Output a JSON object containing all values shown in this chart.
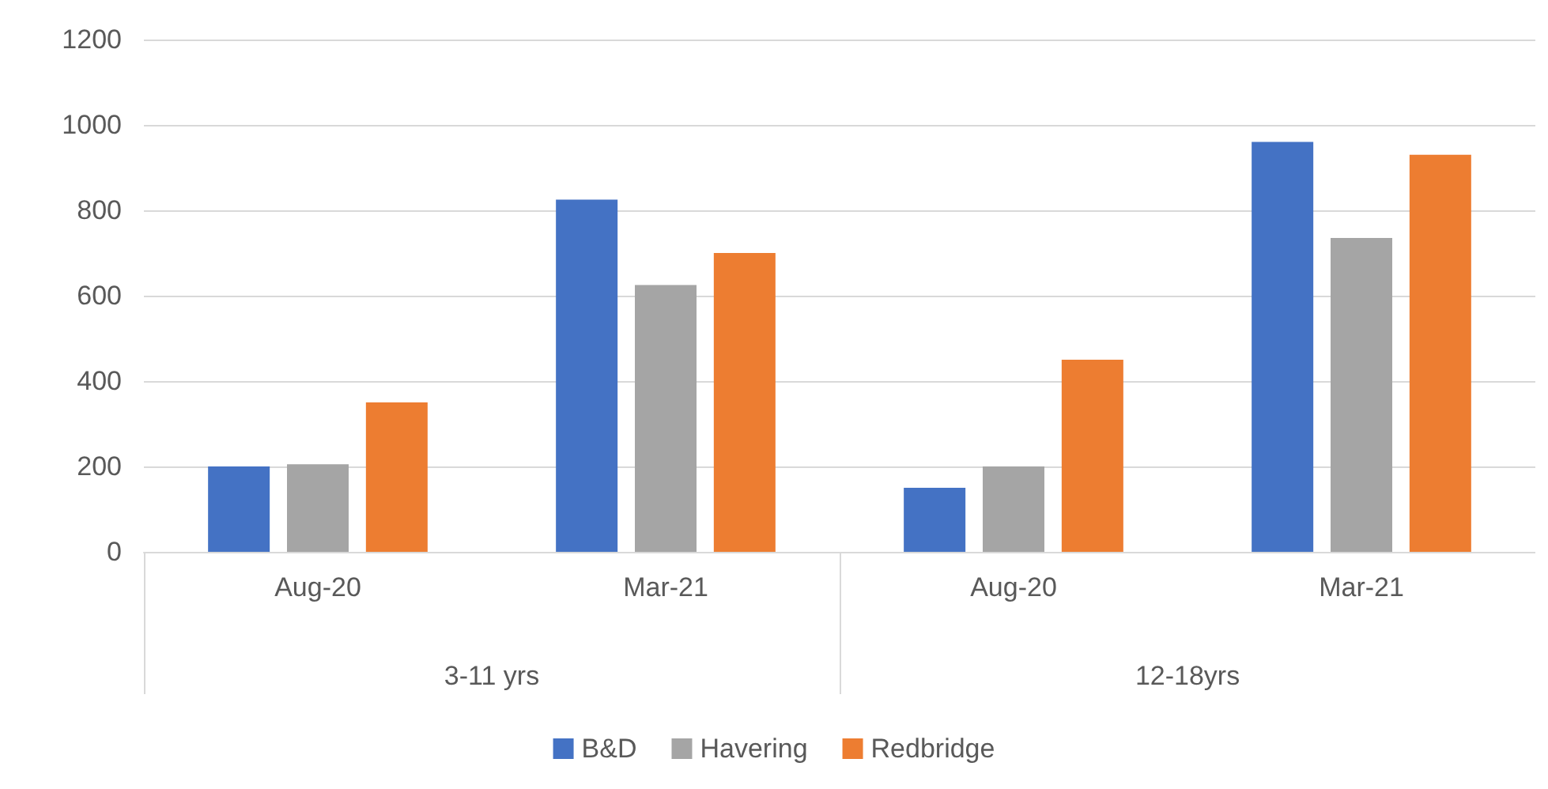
{
  "chart_data": {
    "type": "bar",
    "categories": [
      "Aug-20",
      "Mar-21",
      "Aug-20",
      "Mar-21"
    ],
    "annotations": [
      "3-11 yrs",
      "12-18yrs"
    ],
    "series": [
      {
        "name": "B&D",
        "color": "#4472c4",
        "values": [
          200,
          825,
          150,
          960
        ]
      },
      {
        "name": "Havering",
        "color": "#a5a5a5",
        "values": [
          205,
          625,
          200,
          735
        ]
      },
      {
        "name": "Redbridge",
        "color": "#ed7d31",
        "values": [
          350,
          700,
          450,
          930
        ]
      }
    ],
    "ylim": [
      0,
      1200
    ],
    "yticks": [
      0,
      200,
      400,
      600,
      800,
      1000,
      1200
    ],
    "grid": "y",
    "legend": "bottom"
  }
}
